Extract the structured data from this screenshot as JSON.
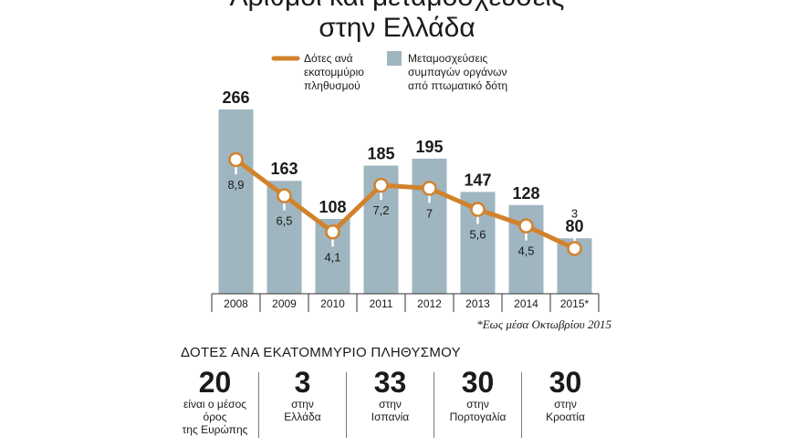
{
  "header": {
    "title_line1": "Αριθμοί και μεταμοσχεύσεις",
    "title_line2": "στην Ελλάδα"
  },
  "chart_data": {
    "type": "bar",
    "categories": [
      "2008",
      "2009",
      "2010",
      "2011",
      "2012",
      "2013",
      "2014",
      "2015*"
    ],
    "series": [
      {
        "name": "Μεταμοσχεύσεις συμπαγών οργάνων από πτωματικό δότη",
        "kind": "bar",
        "values": [
          266,
          163,
          108,
          185,
          195,
          147,
          128,
          80
        ],
        "color": "#9fb5bf"
      },
      {
        "name": "Δότες ανά εκατομμύριο πληθυσμού",
        "kind": "line",
        "values": [
          8.9,
          6.5,
          4.1,
          7.2,
          7,
          5.6,
          4.5,
          3
        ],
        "labels": [
          "8,9",
          "6,5",
          "4,1",
          "7,2",
          "7",
          "5,6",
          "4,5",
          "3"
        ],
        "color": "#d2822c"
      }
    ],
    "legend": {
      "line_label": "Δότες ανά\nεκατομμύριο\nπληθυσμού",
      "bar_label": "Μεταμοσχεύσεις\nσυμπαγών οργάνων\nαπό πτωματικό δότη",
      "position": "top-center"
    },
    "grid": false,
    "ylim": [
      0,
      300
    ],
    "ylim_line": [
      0,
      10
    ],
    "footnote": "*Εως μέσα Οκτωβρίου 2015"
  },
  "stats": {
    "heading": "ΔΟΤΕΣ ΑΝΑ ΕΚΑΤΟΜΜΥΡΙΟ ΠΛΗΘΥΣΜΟΥ",
    "items": [
      {
        "value": "20",
        "caption": "είναι ο μέσος\nόρος\nτης Ευρώπης"
      },
      {
        "value": "3",
        "caption": "στην\nΕλλάδα"
      },
      {
        "value": "33",
        "caption": "στην\nΙσπανία"
      },
      {
        "value": "30",
        "caption": "στην\nΠορτογαλία"
      },
      {
        "value": "30",
        "caption": "στην\nΚροατία"
      }
    ]
  }
}
